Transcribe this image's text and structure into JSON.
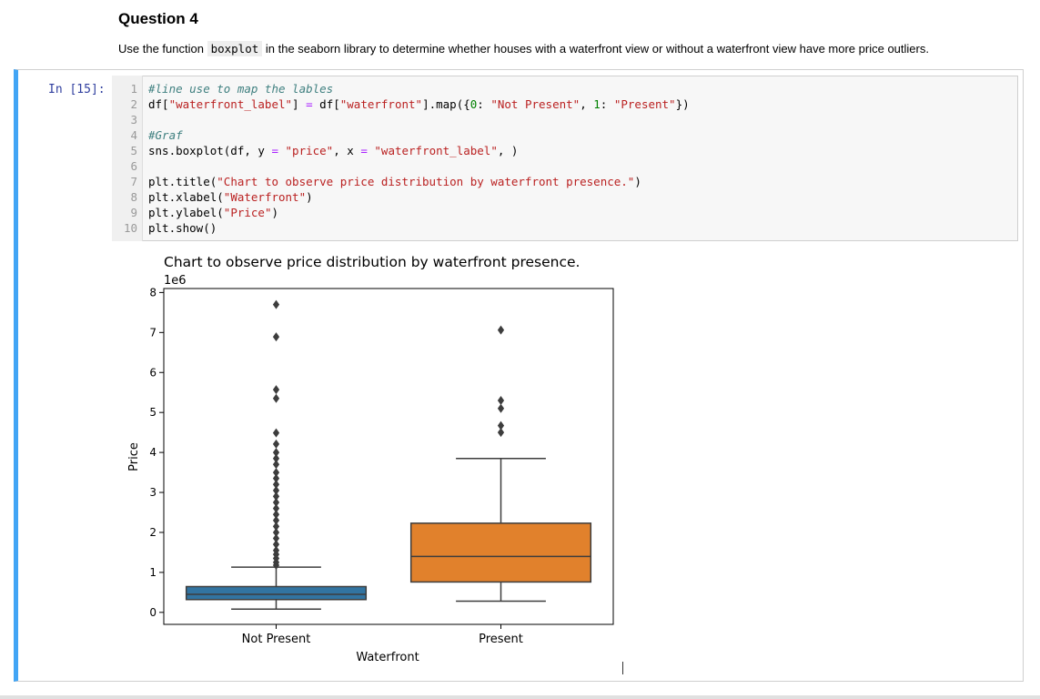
{
  "markdown": {
    "title": "Question 4",
    "text_before": "Use the function",
    "code_word": "boxplot",
    "text_after": "in the seaborn library to determine whether houses with a waterfront view or without a waterfront view have more price outliers."
  },
  "cell": {
    "prompt": "In [15]:",
    "lines": [
      {
        "n": "1",
        "parts": [
          {
            "t": "#line use to map the lables",
            "c": "cm"
          }
        ]
      },
      {
        "n": "2",
        "parts": [
          {
            "t": "df[",
            "c": ""
          },
          {
            "t": "\"waterfront_label\"",
            "c": "st"
          },
          {
            "t": "] ",
            "c": ""
          },
          {
            "t": "=",
            "c": "op"
          },
          {
            "t": " df[",
            "c": ""
          },
          {
            "t": "\"waterfront\"",
            "c": "st"
          },
          {
            "t": "].map({",
            "c": ""
          },
          {
            "t": "0",
            "c": "nm"
          },
          {
            "t": ": ",
            "c": ""
          },
          {
            "t": "\"Not Present\"",
            "c": "st"
          },
          {
            "t": ", ",
            "c": ""
          },
          {
            "t": "1",
            "c": "nm"
          },
          {
            "t": ": ",
            "c": ""
          },
          {
            "t": "\"Present\"",
            "c": "st"
          },
          {
            "t": "})",
            "c": ""
          }
        ]
      },
      {
        "n": "3",
        "parts": []
      },
      {
        "n": "4",
        "parts": [
          {
            "t": "#Graf",
            "c": "cm"
          }
        ]
      },
      {
        "n": "5",
        "parts": [
          {
            "t": "sns.boxplot(df, y ",
            "c": ""
          },
          {
            "t": "=",
            "c": "op"
          },
          {
            "t": " ",
            "c": ""
          },
          {
            "t": "\"price\"",
            "c": "st"
          },
          {
            "t": ", x ",
            "c": ""
          },
          {
            "t": "=",
            "c": "op"
          },
          {
            "t": " ",
            "c": ""
          },
          {
            "t": "\"waterfront_label\"",
            "c": "st"
          },
          {
            "t": ", )",
            "c": ""
          }
        ]
      },
      {
        "n": "6",
        "parts": []
      },
      {
        "n": "7",
        "parts": [
          {
            "t": "plt.title(",
            "c": ""
          },
          {
            "t": "\"Chart to observe price distribution by waterfront presence.\"",
            "c": "st"
          },
          {
            "t": ")",
            "c": ""
          }
        ]
      },
      {
        "n": "8",
        "parts": [
          {
            "t": "plt.xlabel(",
            "c": ""
          },
          {
            "t": "\"Waterfront\"",
            "c": "st"
          },
          {
            "t": ")",
            "c": ""
          }
        ]
      },
      {
        "n": "9",
        "parts": [
          {
            "t": "plt.ylabel(",
            "c": ""
          },
          {
            "t": "\"Price\"",
            "c": "st"
          },
          {
            "t": ")",
            "c": ""
          }
        ]
      },
      {
        "n": "10",
        "parts": [
          {
            "t": "plt.show()",
            "c": ""
          }
        ]
      }
    ]
  },
  "chart_data": {
    "type": "box",
    "title": "Chart to observe price distribution by waterfront presence.",
    "xlabel": "Waterfront",
    "ylabel": "Price",
    "offset_label": "1e6",
    "ylim": [
      -0.3,
      8.1
    ],
    "yticks": [
      0,
      1,
      2,
      3,
      4,
      5,
      6,
      7,
      8
    ],
    "categories": [
      "Not Present",
      "Present"
    ],
    "boxes": [
      {
        "name": "Not Present",
        "color": "#3274a1",
        "whisker_low": 0.08,
        "q1": 0.32,
        "median": 0.45,
        "q3": 0.645,
        "whisker_high": 1.13,
        "outliers": [
          7.7,
          6.89,
          5.57,
          5.35,
          4.49,
          4.21,
          4.0,
          3.85,
          3.7,
          3.5,
          3.35,
          3.2,
          3.05,
          2.9,
          2.75,
          2.6,
          2.45,
          2.3,
          2.15,
          2.0,
          1.85,
          1.7,
          1.55,
          1.45,
          1.35,
          1.25,
          1.18
        ]
      },
      {
        "name": "Present",
        "color": "#e1812c",
        "whisker_low": 0.28,
        "q1": 0.76,
        "median": 1.4,
        "q3": 2.23,
        "whisker_high": 3.85,
        "outliers": [
          7.06,
          5.3,
          5.1,
          4.67,
          4.5
        ]
      }
    ]
  }
}
